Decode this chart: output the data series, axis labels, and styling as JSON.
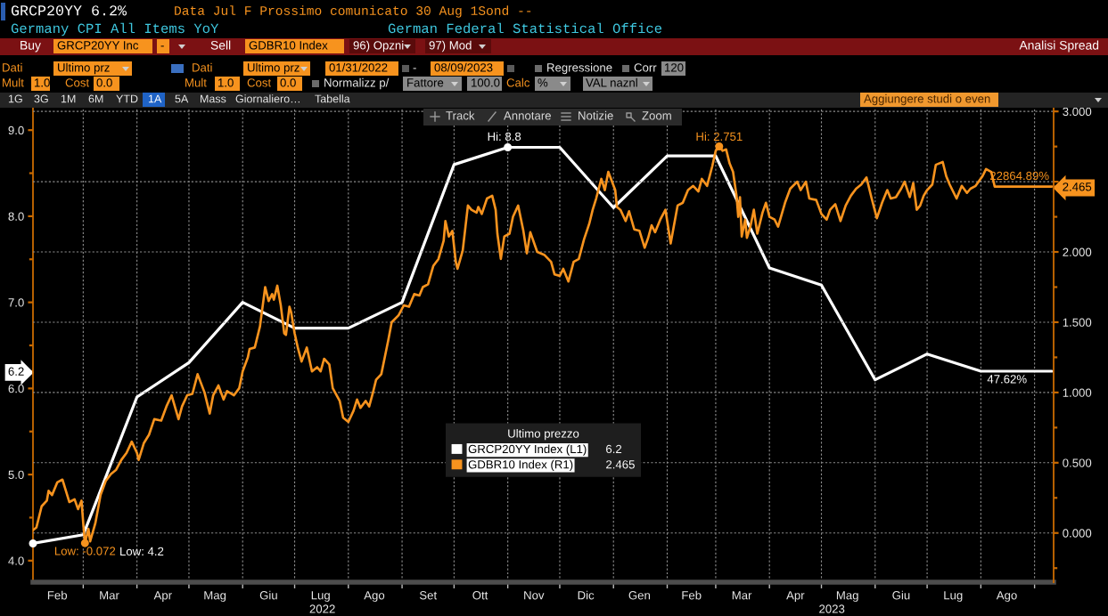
{
  "chart_data": {
    "type": "line",
    "title": "GRCP20YY 6.2%",
    "subtitle": "Germany CPI All Items YoY",
    "legend_title": "Ultimo prezzo",
    "legend": "bottom",
    "grid": true,
    "series": [
      {
        "name": "GRCP20YY Index (L1)",
        "color": "#ffffff",
        "x": [
          "2022-01-31",
          "2022-03-01",
          "2022-04-01",
          "2022-05-01",
          "2022-06-01",
          "2022-07-01",
          "2022-08-01",
          "2022-09-01",
          "2022-10-01",
          "2022-11-01",
          "2022-12-01",
          "2023-01-01",
          "2023-02-01",
          "2023-03-01",
          "2023-04-01",
          "2023-05-01",
          "2023-06-01",
          "2023-07-01",
          "2023-08-01",
          "2023-09-11"
        ],
        "values": [
          4.2,
          4.3,
          5.9,
          6.3,
          7.0,
          6.7,
          6.7,
          7.0,
          8.6,
          8.8,
          8.8,
          8.1,
          8.7,
          8.7,
          7.4,
          7.2,
          6.1,
          6.4,
          6.2,
          6.2
        ]
      },
      {
        "name": "GDBR10 Index (R1)",
        "color": "#f7931e",
        "axis": "y2",
        "x": [
          "2022-01-31",
          "2022-02-02",
          "2022-02-05",
          "2022-02-08",
          "2022-02-09",
          "2022-02-11",
          "2022-02-14",
          "2022-02-17",
          "2022-02-19",
          "2022-02-21",
          "2022-02-24",
          "2022-02-26",
          "2022-02-28",
          "2022-03-01",
          "2022-03-02",
          "2022-03-04",
          "2022-03-05",
          "2022-03-08",
          "2022-03-11",
          "2022-03-14",
          "2022-03-17",
          "2022-03-20",
          "2022-03-23",
          "2022-03-26",
          "2022-03-29",
          "2022-04-01",
          "2022-04-02",
          "2022-04-05",
          "2022-04-08",
          "2022-04-11",
          "2022-04-15",
          "2022-04-18",
          "2022-04-21",
          "2022-04-25",
          "2022-04-27",
          "2022-04-30",
          "2022-05-03",
          "2022-05-06",
          "2022-05-10",
          "2022-05-13",
          "2022-05-15",
          "2022-05-18",
          "2022-05-21",
          "2022-05-23",
          "2022-05-27",
          "2022-05-30",
          "2022-06-01",
          "2022-06-04",
          "2022-06-05",
          "2022-06-08",
          "2022-06-11",
          "2022-06-14",
          "2022-06-16",
          "2022-06-18",
          "2022-06-19",
          "2022-06-21",
          "2022-06-23",
          "2022-06-25",
          "2022-06-26",
          "2022-06-28",
          "2022-06-29",
          "2022-07-01",
          "2022-07-03",
          "2022-07-05",
          "2022-07-08",
          "2022-07-11",
          "2022-07-14",
          "2022-07-16",
          "2022-07-18",
          "2022-07-21",
          "2022-07-23",
          "2022-07-27",
          "2022-07-29",
          "2022-08-01",
          "2022-08-04",
          "2022-08-06",
          "2022-08-08",
          "2022-08-11",
          "2022-08-13",
          "2022-08-15",
          "2022-08-17",
          "2022-08-20",
          "2022-08-22",
          "2022-08-24",
          "2022-08-26",
          "2022-08-30",
          "2022-09-02",
          "2022-09-05",
          "2022-09-08",
          "2022-09-11",
          "2022-09-13",
          "2022-09-16",
          "2022-09-19",
          "2022-09-22",
          "2022-09-25",
          "2022-09-26",
          "2022-09-28",
          "2022-09-30",
          "2022-10-02",
          "2022-10-03",
          "2022-10-06",
          "2022-10-09",
          "2022-10-11",
          "2022-10-14",
          "2022-10-15",
          "2022-10-17",
          "2022-10-20",
          "2022-10-23",
          "2022-10-25",
          "2022-10-26",
          "2022-10-28",
          "2022-10-30",
          "2022-11-02",
          "2022-11-04",
          "2022-11-07",
          "2022-11-10",
          "2022-11-12",
          "2022-11-14",
          "2022-11-18",
          "2022-11-22",
          "2022-11-26",
          "2022-11-28",
          "2022-12-01",
          "2022-12-03",
          "2022-12-06",
          "2022-12-09",
          "2022-12-12",
          "2022-12-15",
          "2022-12-18",
          "2022-12-20",
          "2022-12-22",
          "2022-12-25",
          "2022-12-27",
          "2022-12-29",
          "2023-01-02",
          "2023-01-03",
          "2023-01-05",
          "2023-01-08",
          "2023-01-10",
          "2023-01-13",
          "2023-01-16",
          "2023-01-19",
          "2023-01-21",
          "2023-01-23",
          "2023-01-25",
          "2023-01-28",
          "2023-01-31",
          "2023-02-03",
          "2023-02-07",
          "2023-02-10",
          "2023-02-13",
          "2023-02-16",
          "2023-02-19",
          "2023-02-21",
          "2023-02-24",
          "2023-02-27",
          "2023-03-01",
          "2023-03-03",
          "2023-03-05",
          "2023-03-07",
          "2023-03-09",
          "2023-03-11",
          "2023-03-13",
          "2023-03-14",
          "2023-03-15",
          "2023-03-16",
          "2023-03-18",
          "2023-03-19",
          "2023-03-21",
          "2023-03-23",
          "2023-03-25",
          "2023-03-28",
          "2023-03-30",
          "2023-04-01",
          "2023-04-04",
          "2023-04-06",
          "2023-04-10",
          "2023-04-13",
          "2023-04-17",
          "2023-04-19",
          "2023-04-22",
          "2023-04-24",
          "2023-04-28",
          "2023-05-01",
          "2023-05-04",
          "2023-05-06",
          "2023-05-09",
          "2023-05-12",
          "2023-05-15",
          "2023-05-18",
          "2023-05-21",
          "2023-05-24",
          "2023-05-27",
          "2023-05-30",
          "2023-06-02",
          "2023-06-05",
          "2023-06-08",
          "2023-06-10",
          "2023-06-13",
          "2023-06-16",
          "2023-06-18",
          "2023-06-21",
          "2023-06-23",
          "2023-06-25",
          "2023-06-27",
          "2023-06-29",
          "2023-07-01",
          "2023-07-04",
          "2023-07-06",
          "2023-07-10",
          "2023-07-12",
          "2023-07-14",
          "2023-07-18",
          "2023-07-21",
          "2023-07-24",
          "2023-07-26",
          "2023-07-29",
          "2023-08-02",
          "2023-08-04",
          "2023-08-07",
          "2023-08-09",
          "2023-09-11"
        ],
        "values": [
          0.02,
          0.04,
          0.19,
          0.23,
          0.3,
          0.27,
          0.36,
          0.38,
          0.3,
          0.22,
          0.24,
          0.17,
          0.23,
          0.07,
          -0.072,
          0.03,
          -0.06,
          0.07,
          0.27,
          0.37,
          0.42,
          0.45,
          0.52,
          0.57,
          0.65,
          0.57,
          0.52,
          0.64,
          0.7,
          0.81,
          0.8,
          0.9,
          0.98,
          0.81,
          0.9,
          0.98,
          0.99,
          1.13,
          1.0,
          0.85,
          0.98,
          1.05,
          0.95,
          1.01,
          0.98,
          1.03,
          1.15,
          1.25,
          1.31,
          1.32,
          1.47,
          1.75,
          1.65,
          1.7,
          1.66,
          1.76,
          1.62,
          1.42,
          1.41,
          1.61,
          1.57,
          1.42,
          1.31,
          1.22,
          1.32,
          1.15,
          1.18,
          1.15,
          1.24,
          1.2,
          1.03,
          0.94,
          0.82,
          0.79,
          0.87,
          0.95,
          0.89,
          0.94,
          0.9,
          0.99,
          1.09,
          1.13,
          1.25,
          1.37,
          1.5,
          1.55,
          1.62,
          1.61,
          1.7,
          1.69,
          1.75,
          1.77,
          1.9,
          1.95,
          2.08,
          2.22,
          2.11,
          2.15,
          1.93,
          1.88,
          2.01,
          2.33,
          2.3,
          2.28,
          2.32,
          2.27,
          2.38,
          2.4,
          2.3,
          2.13,
          1.95,
          2.11,
          2.13,
          2.25,
          2.33,
          2.15,
          1.99,
          2.14,
          2.0,
          1.98,
          1.93,
          1.84,
          1.83,
          1.88,
          1.79,
          1.93,
          1.95,
          2.09,
          2.2,
          2.3,
          2.38,
          2.52,
          2.44,
          2.57,
          2.44,
          2.32,
          2.3,
          2.22,
          2.29,
          2.16,
          2.15,
          2.03,
          2.1,
          2.19,
          2.14,
          2.23,
          2.3,
          2.06,
          2.33,
          2.35,
          2.44,
          2.47,
          2.43,
          2.52,
          2.47,
          2.61,
          2.72,
          2.751,
          2.72,
          2.73,
          2.63,
          2.57,
          2.4,
          2.25,
          2.39,
          2.11,
          2.23,
          2.1,
          2.18,
          2.3,
          2.13,
          2.28,
          2.35,
          2.25,
          2.23,
          2.18,
          2.35,
          2.45,
          2.5,
          2.44,
          2.5,
          2.38,
          2.37,
          2.27,
          2.23,
          2.3,
          2.34,
          2.22,
          2.33,
          2.4,
          2.45,
          2.48,
          2.53,
          2.38,
          2.24,
          2.35,
          2.44,
          2.38,
          2.39,
          2.45,
          2.5,
          2.39,
          2.49,
          2.3,
          2.33,
          2.4,
          2.44,
          2.48,
          2.62,
          2.64,
          2.54,
          2.48,
          2.38,
          2.47,
          2.42,
          2.45,
          2.47,
          2.54,
          2.59,
          2.57,
          2.465,
          2.465
        ]
      }
    ],
    "xlim": [
      "2022-01-31",
      "2023-09-12"
    ],
    "xticks": [
      {
        "value": "2022-02-14",
        "label": "Feb"
      },
      {
        "value": "2022-03-01",
        "label": null
      },
      {
        "value": "2022-03-16",
        "label": "Mar"
      },
      {
        "value": "2022-04-01",
        "label": null
      },
      {
        "value": "2022-04-16",
        "label": "Apr"
      },
      {
        "value": "2022-05-01",
        "label": null
      },
      {
        "value": "2022-05-16",
        "label": "Mag"
      },
      {
        "value": "2022-06-01",
        "label": null
      },
      {
        "value": "2022-06-16",
        "label": "Giu"
      },
      {
        "value": "2022-07-01",
        "label": null
      },
      {
        "value": "2022-07-16",
        "label": "Lug"
      },
      {
        "value": "2022-08-01",
        "label": null
      },
      {
        "value": "2022-08-16",
        "label": "Ago"
      },
      {
        "value": "2022-09-01",
        "label": null
      },
      {
        "value": "2022-09-16",
        "label": "Set"
      },
      {
        "value": "2022-10-01",
        "label": null
      },
      {
        "value": "2022-10-16",
        "label": "Ott"
      },
      {
        "value": "2022-11-01",
        "label": null
      },
      {
        "value": "2022-11-16",
        "label": "Nov"
      },
      {
        "value": "2022-12-01",
        "label": null
      },
      {
        "value": "2022-12-16",
        "label": "Dic"
      },
      {
        "value": "2023-01-01",
        "label": null
      },
      {
        "value": "2023-01-16",
        "label": "Gen"
      },
      {
        "value": "2023-02-01",
        "label": null
      },
      {
        "value": "2023-02-15",
        "label": "Feb"
      },
      {
        "value": "2023-03-01",
        "label": null
      },
      {
        "value": "2023-03-16",
        "label": "Mar"
      },
      {
        "value": "2023-04-01",
        "label": null
      },
      {
        "value": "2023-04-16",
        "label": "Apr"
      },
      {
        "value": "2023-05-01",
        "label": null
      },
      {
        "value": "2023-05-16",
        "label": "Mag"
      },
      {
        "value": "2023-06-01",
        "label": null
      },
      {
        "value": "2023-06-16",
        "label": "Giu"
      },
      {
        "value": "2023-07-01",
        "label": null
      },
      {
        "value": "2023-07-16",
        "label": "Lug"
      },
      {
        "value": "2023-08-01",
        "label": null
      },
      {
        "value": "2023-08-16",
        "label": "Ago"
      },
      {
        "value": "2023-09-01",
        "label": null
      }
    ],
    "x2lim": [
      "2022-01-31",
      "2023-09-12"
    ],
    "x2ticks": [
      {
        "value": "2022-07-17",
        "label": "2022"
      },
      {
        "value": "2023-05-07",
        "label": "2023"
      }
    ],
    "ylim": [
      3.75,
      9.25
    ],
    "yticks": [
      {
        "value": 4,
        "label": "4.0"
      },
      {
        "value": 4.5,
        "label": null
      },
      {
        "value": 5,
        "label": "5.0"
      },
      {
        "value": 5.5,
        "label": null
      },
      {
        "value": 6,
        "label": "6.0"
      },
      6.2,
      {
        "value": 6.5,
        "label": null
      },
      {
        "value": 7,
        "label": "7.0"
      },
      {
        "value": 7.5,
        "label": null
      },
      {
        "value": 8,
        "label": "8.0"
      },
      {
        "value": 8.5,
        "label": null
      },
      {
        "value": 9,
        "label": "9.0"
      }
    ],
    "y2lim": [
      -0.35,
      3.02
    ],
    "y2ticks": [
      {
        "value": -0.25,
        "label": null
      },
      {
        "value": 0,
        "label": "0.000"
      },
      {
        "value": 0.25,
        "label": null
      },
      {
        "value": 0.5,
        "label": "0.500"
      },
      {
        "value": 0.75,
        "label": null
      },
      {
        "value": 1,
        "label": "1.000"
      },
      {
        "value": 1.25,
        "label": null
      },
      {
        "value": 1.5,
        "label": "1.500"
      },
      {
        "value": 1.75,
        "label": null
      },
      {
        "value": 2,
        "label": "2.000"
      },
      {
        "value": 2.25,
        "label": null
      },
      2.465,
      {
        "value": 2.5,
        "label": null
      },
      {
        "value": 2.75,
        "label": null
      },
      {
        "value": 3,
        "label": "3.000"
      }
    ],
    "annotations": [
      "Data Jul F Prossimo comunicato 30 Aug 1Sond --",
      "German Federal Statistical Office",
      "Buy",
      "GRCP20YY Inc",
      "-",
      "Sell",
      "GDBR10 Index",
      "96) Opzni",
      "97) Mod",
      "Analisi Spread",
      "Dati",
      "Ultimo prz",
      "Dati",
      "Ultimo prz",
      "01/31/2022",
      "-",
      "08/09/2023",
      "Regressione",
      "Corr",
      "120",
      "Mult",
      "1.0",
      "Cost",
      "0.0",
      "Mult",
      "1.0",
      "Cost",
      "0.0",
      "Normalizz p/",
      "Fattore",
      "100.0",
      "Calc",
      "%",
      "VAL naznl",
      "1G",
      "3G",
      "1M",
      "6M",
      "YTD",
      "1A",
      "5A",
      "Mass",
      "Giornaliero…",
      "Tabella",
      "Aggiungere studi o even",
      "Track",
      "Annotare",
      "Notizie",
      "Zoom",
      "Hi: 2.751",
      "Low: -0.072",
      "Low: 4.2",
      "22864.89%",
      "6.2",
      "2.465",
      {
        "text": "Hi: 8.8",
        "x": "2022-11-01",
        "y": 8.8
      },
      {
        "text": "47.62%",
        "x": "2023-08-01",
        "y": 6.2
      }
    ]
  }
}
